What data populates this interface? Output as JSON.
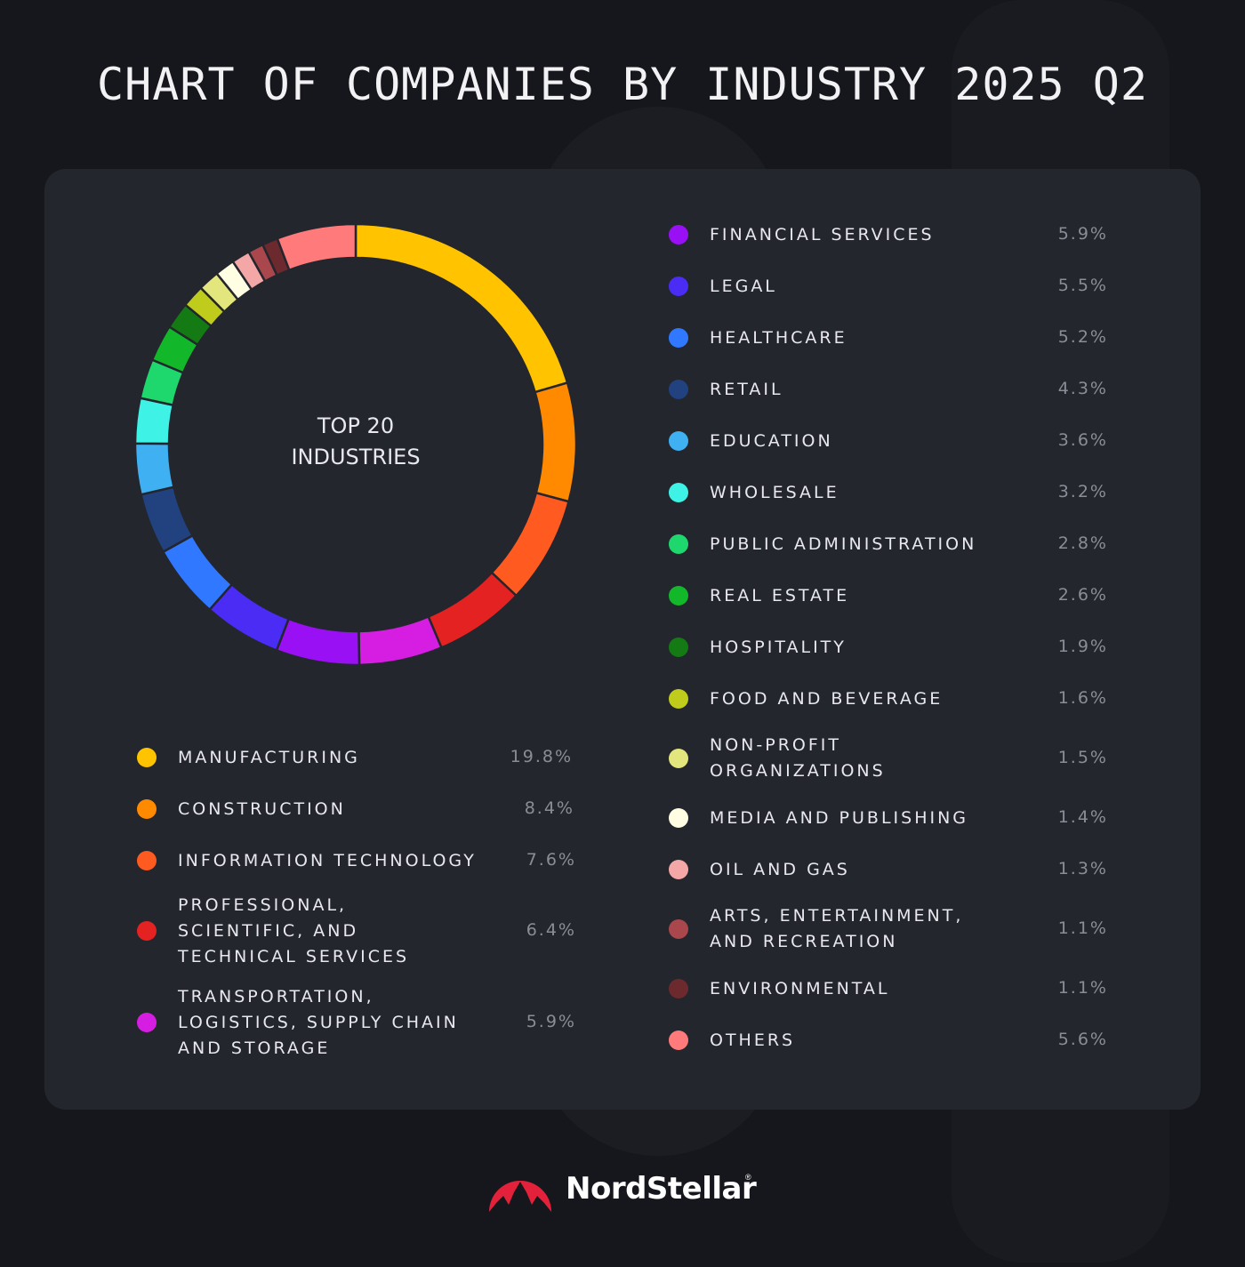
{
  "title": "CHART OF COMPANIES BY INDUSTRY 2025 Q2",
  "center_label_line1": "TOP 20",
  "center_label_line2": "INDUSTRIES",
  "brand": {
    "name": "NordStellar",
    "reg_mark": "®",
    "icon": "mountain-logo-icon",
    "accent": "#e3213b"
  },
  "chart_data": {
    "type": "pie",
    "title": "CHART OF COMPANIES BY INDUSTRY 2025 Q2",
    "donut": true,
    "center_text": "TOP 20 INDUSTRIES",
    "slices": [
      {
        "label": "MANUFACTURING",
        "value": 19.8,
        "display": "19.8%",
        "color": "#ffc300"
      },
      {
        "label": "CONSTRUCTION",
        "value": 8.4,
        "display": "8.4%",
        "color": "#ff8a00"
      },
      {
        "label": "INFORMATION TECHNOLOGY",
        "value": 7.6,
        "display": "7.6%",
        "color": "#ff5a1f"
      },
      {
        "label": "PROFESSIONAL,\nSCIENTIFIC, AND\nTECHNICAL SERVICES",
        "value": 6.4,
        "display": "6.4%",
        "color": "#e52222"
      },
      {
        "label": "TRANSPORTATION,\nLOGISTICS, SUPPLY CHAIN\nAND STORAGE",
        "value": 5.9,
        "display": "5.9%",
        "color": "#d61ee3"
      },
      {
        "label": "FINANCIAL SERVICES",
        "value": 5.9,
        "display": "5.9%",
        "color": "#9a10f5"
      },
      {
        "label": "LEGAL",
        "value": 5.5,
        "display": "5.5%",
        "color": "#4a2cf5"
      },
      {
        "label": "HEALTHCARE",
        "value": 5.2,
        "display": "5.2%",
        "color": "#2f78ff"
      },
      {
        "label": "RETAIL",
        "value": 4.3,
        "display": "4.3%",
        "color": "#21417f"
      },
      {
        "label": "EDUCATION",
        "value": 3.6,
        "display": "3.6%",
        "color": "#3fb0f2"
      },
      {
        "label": "WHOLESALE",
        "value": 3.2,
        "display": "3.2%",
        "color": "#3ff2e6"
      },
      {
        "label": "PUBLIC ADMINISTRATION",
        "value": 2.8,
        "display": "2.8%",
        "color": "#1ed86e"
      },
      {
        "label": "REAL ESTATE",
        "value": 2.6,
        "display": "2.6%",
        "color": "#12b82a"
      },
      {
        "label": "HOSPITALITY",
        "value": 1.9,
        "display": "1.9%",
        "color": "#137a14"
      },
      {
        "label": "FOOD AND BEVERAGE",
        "value": 1.6,
        "display": "1.6%",
        "color": "#bfcc1c"
      },
      {
        "label": "NON-PROFIT\nORGANIZATIONS",
        "value": 1.5,
        "display": "1.5%",
        "color": "#e2e67c"
      },
      {
        "label": "MEDIA AND PUBLISHING",
        "value": 1.4,
        "display": "1.4%",
        "color": "#fffde2"
      },
      {
        "label": "OIL AND GAS",
        "value": 1.3,
        "display": "1.3%",
        "color": "#f4a7a7"
      },
      {
        "label": "ARTS, ENTERTAINMENT,\nAND RECREATION",
        "value": 1.1,
        "display": "1.1%",
        "color": "#a9474d"
      },
      {
        "label": "ENVIRONMENTAL",
        "value": 1.1,
        "display": "1.1%",
        "color": "#6d2a2e"
      },
      {
        "label": "OTHERS",
        "value": 5.6,
        "display": "5.6%",
        "color": "#ff7a7a"
      }
    ]
  }
}
